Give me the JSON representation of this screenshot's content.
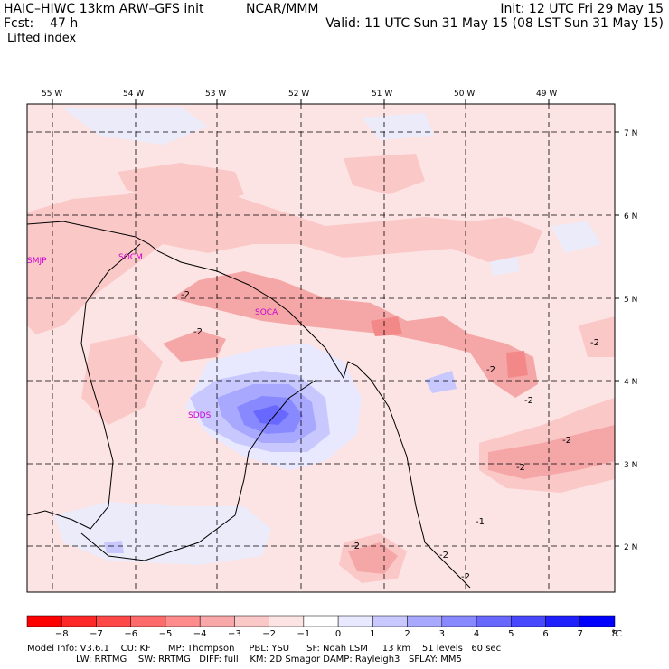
{
  "header": {
    "model": "HAIC–HIWC 13km ARW–GFS init",
    "org": "NCAR/MMM",
    "init": "Init: 12 UTC Fri 29 May 15",
    "forecast": "Fcst:    47 h",
    "valid": "Valid: 11 UTC Sun 31 May 15 (08 LST Sun 31 May 15)",
    "field": "Lifted index"
  },
  "map": {
    "longitudes": [
      "55 W",
      "54 W",
      "53 W",
      "52 W",
      "51 W",
      "50 W",
      "49 W"
    ],
    "latitudes": [
      "7 N",
      "6 N",
      "5 N",
      "4 N",
      "3 N",
      "2 N"
    ],
    "stations": [
      "SMJP",
      "SOCM",
      "SOCA",
      "SDDS"
    ],
    "contour_labels": [
      "-2",
      "-2",
      "-2",
      "-2",
      "-2",
      "-2",
      "-2",
      "-2",
      "-2",
      "-2",
      "-1"
    ]
  },
  "colorbar": {
    "unit": "°C",
    "ticks": [
      "−8",
      "−7",
      "−6",
      "−5",
      "−4",
      "−3",
      "−2",
      "−1",
      "0",
      "1",
      "2",
      "3",
      "4",
      "5",
      "6",
      "7",
      "8"
    ],
    "colors": [
      "#ff0000",
      "#ff2828",
      "#ff4848",
      "#ff6a6a",
      "#ff8c8c",
      "#f8a8a8",
      "#fbc8c8",
      "#fde4e4",
      "#ffffff",
      "#e8e8ff",
      "#c8c8ff",
      "#a8a8ff",
      "#8888ff",
      "#6868ff",
      "#4848ff",
      "#2020ff"
    ]
  },
  "footer": {
    "line1": "Model Info: V3.6.1    CU: KF      MP: Thompson     PBL: YSU      SF: Noah LSM     13 km    51 levels   60 sec",
    "line2": "                 LW: RRTMG    SW: RRTMG   DIFF: full    KM: 2D Smagor DAMP: Rayleigh3   SFLAY: MM5"
  }
}
